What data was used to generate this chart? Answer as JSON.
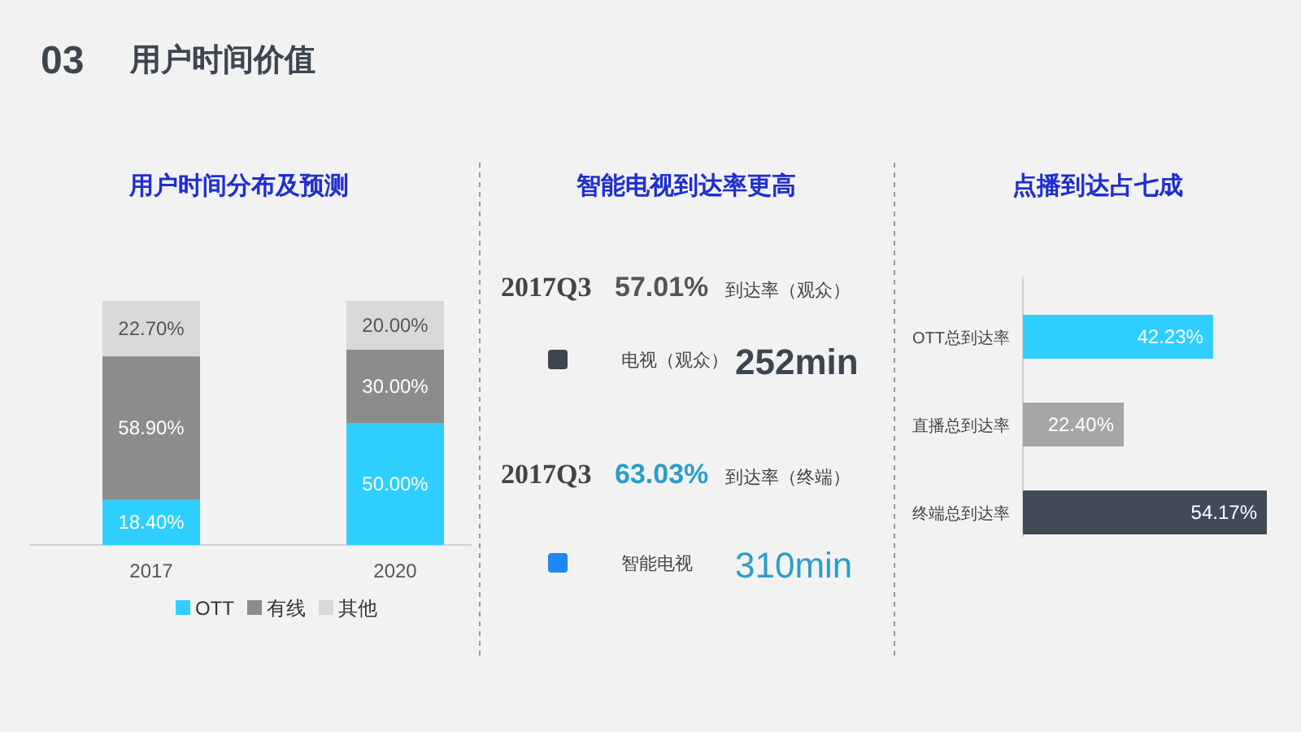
{
  "chart_data": [
    {
      "type": "other",
      "title": "用户时间价值",
      "annotations": [
        "03"
      ]
    },
    {
      "type": "bar",
      "title": "用户时间分布及预测",
      "categories": [
        "2017",
        "2020"
      ],
      "stacked": true,
      "legend": "bottom",
      "series": [
        {
          "name": "OTT",
          "color": "#2ecfff",
          "values": [
            18.4,
            50
          ],
          "value_labels": [
            "18.40%",
            "50.00%"
          ]
        },
        {
          "name": "有线",
          "color": "#8c8c8c",
          "values": [
            58.9,
            30
          ],
          "value_labels": [
            "58.90%",
            "30.00%"
          ]
        },
        {
          "name": "其他",
          "color": "#d9d9d9",
          "values": [
            22.7,
            20
          ],
          "value_labels": [
            "22.70%",
            "20.00%"
          ]
        }
      ]
    },
    {
      "type": "other",
      "title": "智能电视到达率更高",
      "colors": [
        "#3d4650",
        "#1e88f0"
      ],
      "annotations": [
        "2017Q3",
        "57.01%",
        "到达率（观众）",
        "电视（观众）",
        "252min",
        "2017Q3",
        "63.03%",
        "到达率（终端）",
        "智能电视",
        "310min"
      ]
    },
    {
      "type": "bar",
      "title": "点播到达占七成",
      "orientation": "horizontal",
      "categories": [
        "OTT总到达率",
        "直播总到达率",
        "终端总到达率"
      ],
      "values": [
        42.23,
        22.4,
        54.17
      ],
      "colors": [
        "#2ecfff",
        "#a6a6a6",
        "#404b57"
      ],
      "value_labels": [
        "42.23%",
        "22.40%",
        "54.17%"
      ]
    }
  ]
}
